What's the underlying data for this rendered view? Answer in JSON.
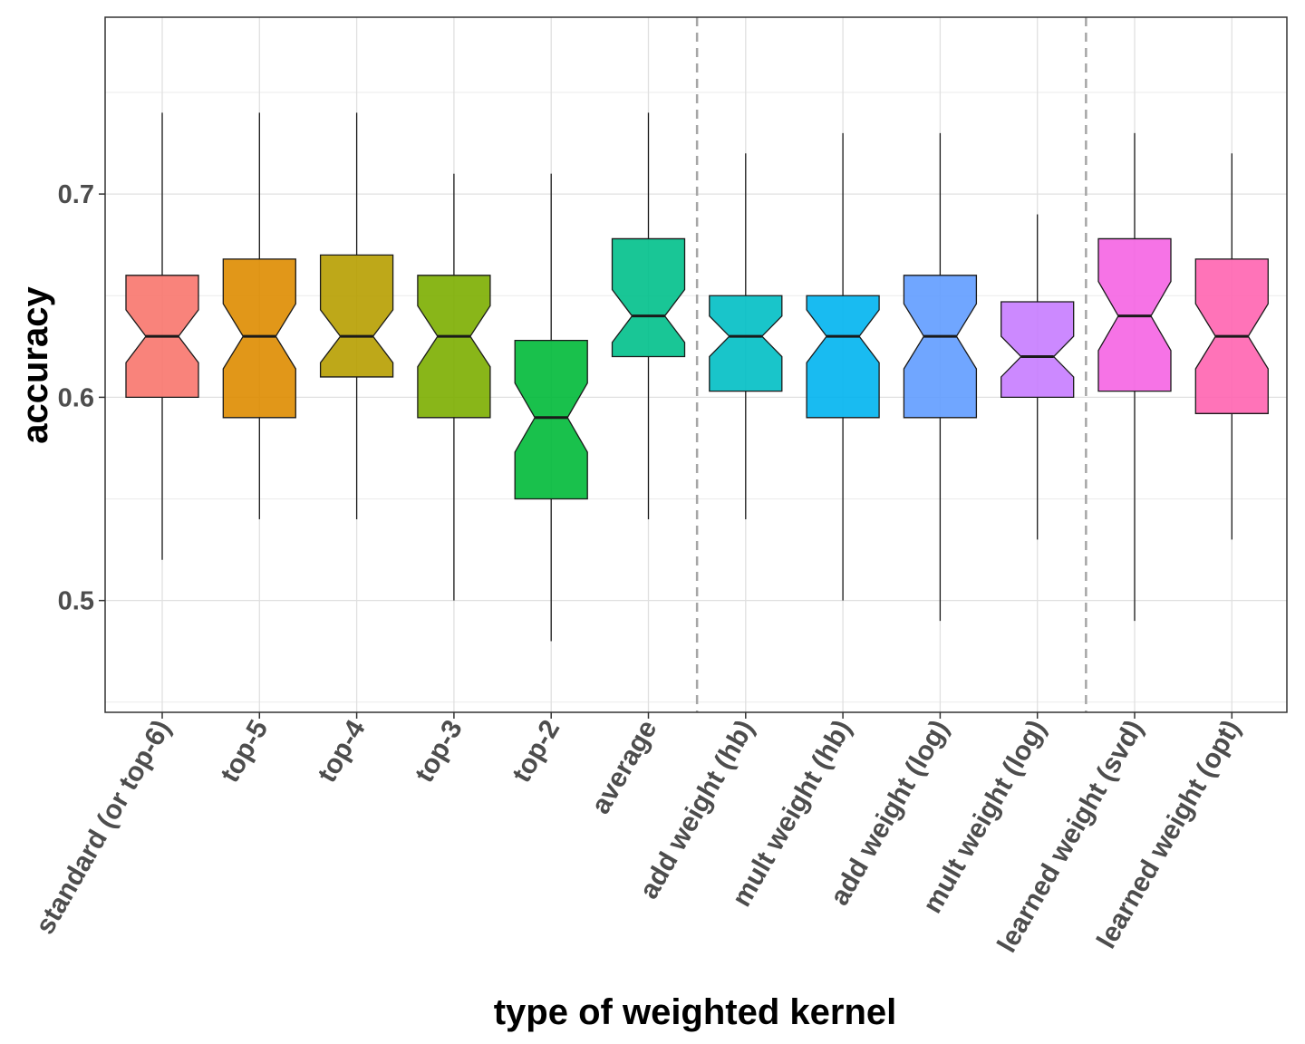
{
  "chart_data": {
    "type": "boxplot",
    "notched": true,
    "xlabel": "type of weighted kernel",
    "ylabel": "accuracy",
    "ylim": [
      0.445,
      0.787
    ],
    "yticks": [
      0.5,
      0.6,
      0.7
    ],
    "ytick_labels": [
      "0.5",
      "0.6",
      "0.7"
    ],
    "grid": true,
    "separators_after_category_index": [
      5,
      9
    ],
    "categories": [
      "standard (or top-6)",
      "top-5",
      "top-4",
      "top-3",
      "top-2",
      "average",
      "add weight (hb)",
      "mult weight (hb)",
      "add weight (log)",
      "mult weight (log)",
      "learned weight (svd)",
      "learned weight (opt)"
    ],
    "colors": [
      "#F8766D",
      "#DE8C00",
      "#B79F00",
      "#7CAE00",
      "#00BA38",
      "#00C08B",
      "#00BFC4",
      "#00B4F0",
      "#619CFF",
      "#C77CFF",
      "#F564E3",
      "#FF64B0"
    ],
    "boxes": [
      {
        "min": 0.52,
        "q1": 0.6,
        "median": 0.63,
        "q3": 0.66,
        "max": 0.74,
        "notch_low": 0.617,
        "notch_high": 0.643
      },
      {
        "min": 0.54,
        "q1": 0.59,
        "median": 0.63,
        "q3": 0.668,
        "max": 0.74,
        "notch_low": 0.614,
        "notch_high": 0.646
      },
      {
        "min": 0.54,
        "q1": 0.61,
        "median": 0.63,
        "q3": 0.67,
        "max": 0.74,
        "notch_low": 0.617,
        "notch_high": 0.643
      },
      {
        "min": 0.5,
        "q1": 0.59,
        "median": 0.63,
        "q3": 0.66,
        "max": 0.71,
        "notch_low": 0.615,
        "notch_high": 0.645
      },
      {
        "min": 0.48,
        "q1": 0.55,
        "median": 0.59,
        "q3": 0.628,
        "max": 0.71,
        "notch_low": 0.573,
        "notch_high": 0.607
      },
      {
        "min": 0.54,
        "q1": 0.62,
        "median": 0.64,
        "q3": 0.678,
        "max": 0.74,
        "notch_low": 0.627,
        "notch_high": 0.653
      },
      {
        "min": 0.54,
        "q1": 0.603,
        "median": 0.63,
        "q3": 0.65,
        "max": 0.72,
        "notch_low": 0.62,
        "notch_high": 0.64
      },
      {
        "min": 0.5,
        "q1": 0.59,
        "median": 0.63,
        "q3": 0.65,
        "max": 0.73,
        "notch_low": 0.617,
        "notch_high": 0.643
      },
      {
        "min": 0.49,
        "q1": 0.59,
        "median": 0.63,
        "q3": 0.66,
        "max": 0.73,
        "notch_low": 0.614,
        "notch_high": 0.646
      },
      {
        "min": 0.53,
        "q1": 0.6,
        "median": 0.62,
        "q3": 0.647,
        "max": 0.69,
        "notch_low": 0.61,
        "notch_high": 0.63
      },
      {
        "min": 0.49,
        "q1": 0.603,
        "median": 0.64,
        "q3": 0.678,
        "max": 0.73,
        "notch_low": 0.623,
        "notch_high": 0.657
      },
      {
        "min": 0.53,
        "q1": 0.592,
        "median": 0.63,
        "q3": 0.668,
        "max": 0.72,
        "notch_low": 0.614,
        "notch_high": 0.646
      }
    ]
  }
}
